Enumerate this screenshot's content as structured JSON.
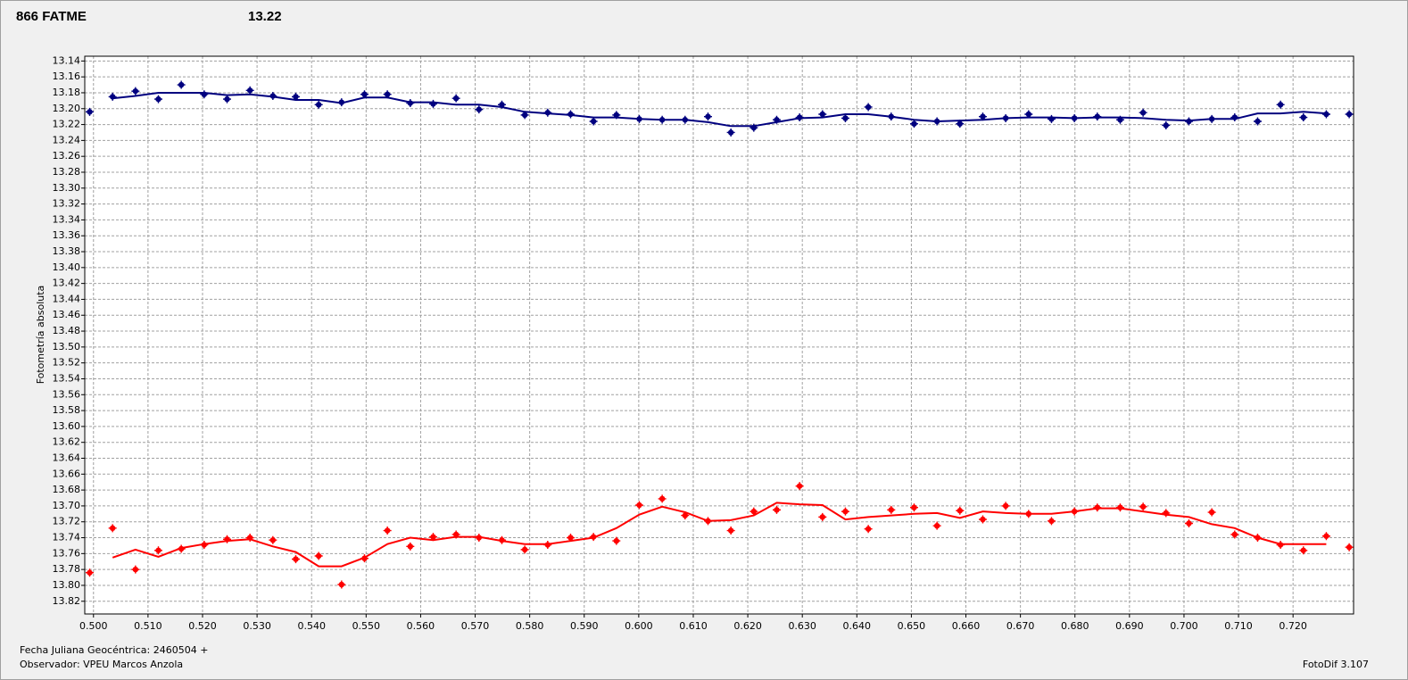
{
  "chart_data": {
    "type": "scatter",
    "title": "866 FATME",
    "subtitle": "13.22",
    "y_label": "Fotometría absoluta",
    "notes": [
      "Fecha Juliana Geocéntrica: 2460504 +",
      "Observador: VPEU Marcos Anzola",
      "FotoDif 3.107"
    ],
    "title_color": "#ff2020",
    "subtitle_color": "#00008b",
    "grid": true,
    "y_inverted": true,
    "xlim": [
      0.4984,
      0.7311
    ],
    "ylim": [
      13.836,
      13.134
    ],
    "xticks": [
      {
        "value": 0.5,
        "label": "0.500"
      },
      {
        "value": 0.51,
        "label": "0.510"
      },
      {
        "value": 0.52,
        "label": "0.520"
      },
      {
        "value": 0.53,
        "label": "0.530"
      },
      {
        "value": 0.54,
        "label": "0.540"
      },
      {
        "value": 0.55,
        "label": "0.550"
      },
      {
        "value": 0.56,
        "label": "0.560"
      },
      {
        "value": 0.57,
        "label": "0.570"
      },
      {
        "value": 0.58,
        "label": "0.580"
      },
      {
        "value": 0.59,
        "label": "0.590"
      },
      {
        "value": 0.6,
        "label": "0.600"
      },
      {
        "value": 0.61,
        "label": "0.610"
      },
      {
        "value": 0.62,
        "label": "0.620"
      },
      {
        "value": 0.63,
        "label": "0.630"
      },
      {
        "value": 0.64,
        "label": "0.640"
      },
      {
        "value": 0.65,
        "label": "0.650"
      },
      {
        "value": 0.66,
        "label": "0.660"
      },
      {
        "value": 0.67,
        "label": "0.670"
      },
      {
        "value": 0.68,
        "label": "0.680"
      },
      {
        "value": 0.69,
        "label": "0.690"
      },
      {
        "value": 0.7,
        "label": "0.700"
      },
      {
        "value": 0.71,
        "label": "0.710"
      },
      {
        "value": 0.72,
        "label": "0.720"
      }
    ],
    "yticks": [
      13.14,
      13.16,
      13.18,
      {
        "value": 13.2,
        "label": "13.20"
      },
      13.22,
      13.24,
      13.26,
      13.28,
      {
        "value": 13.3,
        "label": "13.30"
      },
      13.32,
      13.34,
      13.36,
      13.38,
      {
        "value": 13.4,
        "label": "13.40"
      },
      13.42,
      13.44,
      13.46,
      13.48,
      {
        "value": 13.5,
        "label": "13.50"
      },
      13.52,
      13.54,
      13.56,
      13.58,
      {
        "value": 13.6,
        "label": "13.60"
      },
      13.62,
      13.64,
      13.66,
      13.68,
      {
        "value": 13.7,
        "label": "13.70"
      },
      13.72,
      13.74,
      13.76,
      13.78,
      {
        "value": 13.8,
        "label": "13.80"
      },
      13.82
    ],
    "x": [
      0.4993,
      0.5035,
      0.5077,
      0.5119,
      0.5161,
      0.5203,
      0.5245,
      0.5287,
      0.5329,
      0.5371,
      0.5413,
      0.5455,
      0.5497,
      0.5539,
      0.5581,
      0.5623,
      0.5665,
      0.5707,
      0.5749,
      0.5791,
      0.5833,
      0.5875,
      0.5917,
      0.5959,
      0.6001,
      0.6043,
      0.6085,
      0.6127,
      0.6169,
      0.6211,
      0.6253,
      0.6295,
      0.6337,
      0.6379,
      0.6421,
      0.6463,
      0.6505,
      0.6547,
      0.6589,
      0.6631,
      0.6673,
      0.6715,
      0.6757,
      0.6799,
      0.6841,
      0.6883,
      0.6925,
      0.6967,
      0.7009,
      0.7051,
      0.7093,
      0.7135,
      0.7177,
      0.7219,
      0.7261,
      0.7303
    ],
    "series": [
      {
        "mode": "points",
        "color": "#00007f",
        "values": [
          13.204,
          13.185,
          13.178,
          13.188,
          13.17,
          13.182,
          13.188,
          13.177,
          13.184,
          13.185,
          13.195,
          13.192,
          13.182,
          13.182,
          13.193,
          13.194,
          13.187,
          13.201,
          13.195,
          13.208,
          13.205,
          13.207,
          13.216,
          13.208,
          13.213,
          13.214,
          13.214,
          13.21,
          13.23,
          13.224,
          13.214,
          13.211,
          13.207,
          13.212,
          13.198,
          13.21,
          13.219,
          13.216,
          13.219,
          13.21,
          13.212,
          13.207,
          13.213,
          13.212,
          13.21,
          13.214,
          13.205,
          13.221,
          13.216,
          13.213,
          13.211,
          13.216,
          13.195,
          13.211,
          13.207,
          13.207
        ]
      },
      {
        "mode": "line",
        "color": "#00007f",
        "values": [
          null,
          13.187,
          13.184,
          13.18,
          13.18,
          13.18,
          13.183,
          13.182,
          13.185,
          13.189,
          13.189,
          13.193,
          13.186,
          13.186,
          13.192,
          13.192,
          13.195,
          13.195,
          13.198,
          13.204,
          13.206,
          13.208,
          13.211,
          13.211,
          13.213,
          13.214,
          13.214,
          13.217,
          13.222,
          13.222,
          13.217,
          13.212,
          13.211,
          13.207,
          13.207,
          13.21,
          13.214,
          13.216,
          13.215,
          13.214,
          13.212,
          13.211,
          13.211,
          13.212,
          13.211,
          13.211,
          13.212,
          13.214,
          13.215,
          13.213,
          13.213,
          13.206,
          13.206,
          13.204,
          13.206,
          null
        ]
      },
      {
        "mode": "points",
        "color": "#ff0000",
        "values": [
          13.784,
          13.728,
          13.78,
          13.756,
          13.754,
          13.749,
          13.742,
          13.74,
          13.743,
          13.767,
          13.763,
          13.799,
          13.766,
          13.731,
          13.751,
          13.739,
          13.736,
          13.74,
          13.743,
          13.755,
          13.749,
          13.74,
          13.739,
          13.744,
          13.699,
          13.691,
          13.712,
          13.719,
          13.731,
          13.707,
          13.705,
          13.675,
          13.714,
          13.707,
          13.729,
          13.705,
          13.702,
          13.725,
          13.706,
          13.717,
          13.7,
          13.71,
          13.719,
          13.707,
          13.702,
          13.702,
          13.701,
          13.709,
          13.722,
          13.708,
          13.736,
          13.74,
          13.749,
          13.756,
          13.738,
          13.752
        ]
      },
      {
        "mode": "line",
        "color": "#ff0000",
        "values": [
          null,
          13.765,
          13.755,
          13.764,
          13.753,
          13.748,
          13.744,
          13.742,
          13.751,
          13.758,
          13.776,
          13.776,
          13.765,
          13.748,
          13.74,
          13.743,
          13.739,
          13.739,
          13.744,
          13.748,
          13.748,
          13.744,
          13.74,
          13.728,
          13.711,
          13.701,
          13.708,
          13.719,
          13.718,
          13.712,
          13.696,
          13.698,
          13.699,
          13.717,
          13.714,
          13.712,
          13.71,
          13.709,
          13.715,
          13.707,
          13.709,
          13.71,
          13.71,
          13.707,
          13.703,
          13.703,
          13.707,
          13.711,
          13.714,
          13.723,
          13.728,
          13.74,
          13.748,
          13.748,
          13.748,
          null
        ]
      }
    ]
  }
}
